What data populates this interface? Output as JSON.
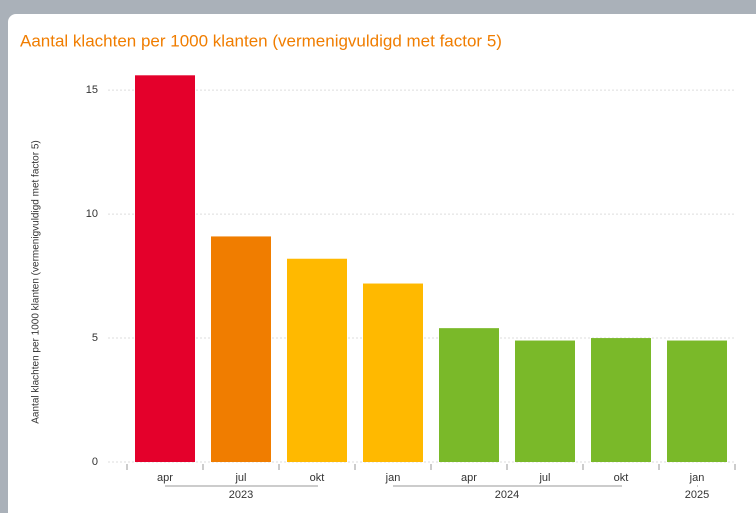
{
  "chart_data": {
    "type": "bar",
    "title": "Aantal klachten per 1000 klanten (vermenigvuldigd met factor 5)",
    "y_label": "Aantal klachten per 1000 klanten (vermenigvuldigd met factor 5)",
    "categories": [
      "apr",
      "jul",
      "okt",
      "jan",
      "apr",
      "jul",
      "okt",
      "jan"
    ],
    "groups": [
      {
        "label": "2023",
        "size": 3
      },
      {
        "label": "2024",
        "size": 4
      },
      {
        "label": "2025",
        "size": 1
      }
    ],
    "values": [
      15.6,
      9.1,
      8.2,
      7.2,
      5.4,
      4.9,
      5.0,
      4.9
    ],
    "colors": [
      "#e4002b",
      "#f07d00",
      "#ffb900",
      "#ffb900",
      "#7ab929",
      "#7ab929",
      "#7ab929",
      "#7ab929"
    ],
    "ylim": [
      0,
      16.5
    ],
    "yticks": [
      0,
      5,
      10,
      15
    ],
    "grid": true
  }
}
